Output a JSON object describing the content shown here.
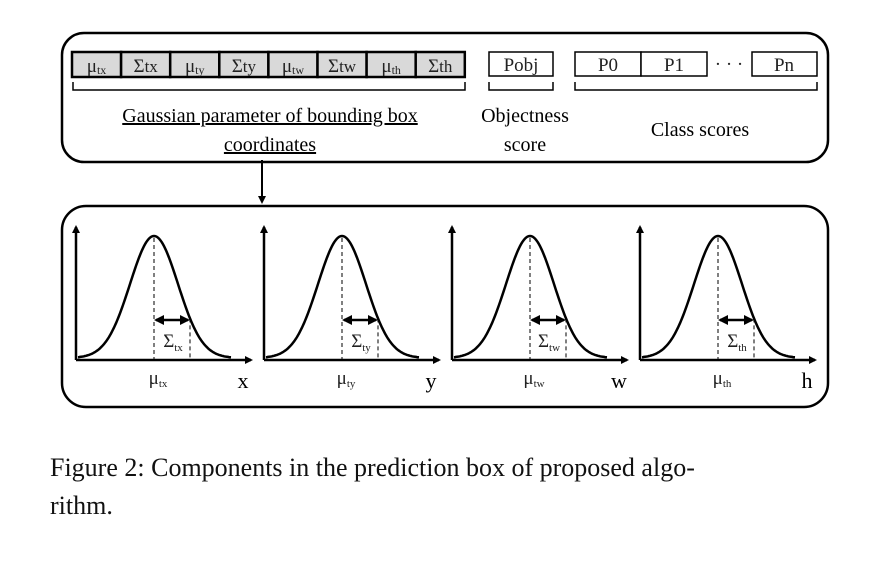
{
  "top": {
    "params": [
      {
        "sym": "μ",
        "sub": "tx"
      },
      {
        "sym": "Σ",
        "sub": "tx"
      },
      {
        "sym": "μ",
        "sub": "ty"
      },
      {
        "sym": "Σ",
        "sub": "ty"
      },
      {
        "sym": "μ",
        "sub": "tw"
      },
      {
        "sym": "Σ",
        "sub": "tw"
      },
      {
        "sym": "μ",
        "sub": "th"
      },
      {
        "sym": "Σ",
        "sub": "th"
      }
    ],
    "gaussian_label_line1": "Gaussian parameter of bounding box",
    "gaussian_label_line2": "coordinates",
    "pobj": "Pobj",
    "objectness_line1": "Objectness",
    "objectness_line2": "score",
    "classes": [
      "P0",
      "P1",
      "Pn"
    ],
    "ellipsis": "· · ·",
    "class_scores": "Class scores",
    "cell_fill": "#d9d9d9"
  },
  "plots": [
    {
      "mu": "μ",
      "mu_sub": "tx",
      "sigma": "Σ",
      "sigma_sub": "tx",
      "axis": "x"
    },
    {
      "mu": "μ",
      "mu_sub": "ty",
      "sigma": "Σ",
      "sigma_sub": "ty",
      "axis": "y"
    },
    {
      "mu": "μ",
      "mu_sub": "tw",
      "sigma": "Σ",
      "sigma_sub": "tw",
      "axis": "w"
    },
    {
      "mu": "μ",
      "mu_sub": "th",
      "sigma": "Σ",
      "sigma_sub": "th",
      "axis": "h"
    }
  ],
  "caption": {
    "line1": "Figure 2:  Components in the prediction box of proposed algo-",
    "line2": "rithm."
  }
}
